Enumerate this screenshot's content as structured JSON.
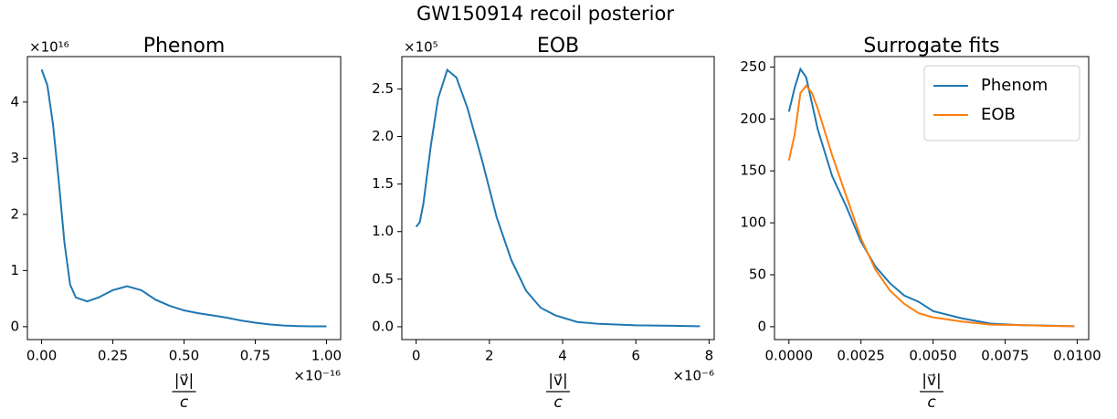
{
  "title": "GW150914 recoil posterior",
  "chart_data": [
    {
      "type": "line",
      "title": "Phenom",
      "xlabel_numerator": "|v⃗|",
      "xlabel_denominator": "c",
      "x_offset_label": "×10⁻¹⁶",
      "y_offset_label": "×10¹⁶",
      "x": [
        0,
        0.02,
        0.04,
        0.06,
        0.08,
        0.1,
        0.12,
        0.16,
        0.2,
        0.25,
        0.3,
        0.35,
        0.4,
        0.45,
        0.5,
        0.55,
        0.6,
        0.65,
        0.7,
        0.75,
        0.8,
        0.85,
        0.9,
        0.95,
        1.0
      ],
      "series": [
        {
          "color": "#1f77b4",
          "values": [
            4.58,
            4.3,
            3.6,
            2.6,
            1.5,
            0.75,
            0.52,
            0.45,
            0.52,
            0.65,
            0.72,
            0.65,
            0.48,
            0.37,
            0.29,
            0.24,
            0.2,
            0.16,
            0.11,
            0.07,
            0.04,
            0.02,
            0.01,
            0.005,
            0.005
          ]
        }
      ],
      "xlim": [
        -0.05,
        1.05
      ],
      "ylim": [
        -0.23,
        4.81
      ],
      "xticks": [
        {
          "value": 0,
          "label": "0.00"
        },
        {
          "value": 0.25,
          "label": "0.25"
        },
        {
          "value": 0.5,
          "label": "0.50"
        },
        {
          "value": 0.75,
          "label": "0.75"
        },
        {
          "value": 1,
          "label": "1.00"
        }
      ],
      "yticks": [
        0,
        1,
        2,
        3,
        4
      ]
    },
    {
      "type": "line",
      "title": "EOB",
      "xlabel_numerator": "|v⃗|",
      "xlabel_denominator": "c",
      "x_offset_label": "×10⁻⁶",
      "y_offset_label": "×10⁵",
      "x": [
        0,
        0.1,
        0.2,
        0.4,
        0.6,
        0.85,
        1.1,
        1.4,
        1.8,
        2.2,
        2.6,
        3.0,
        3.4,
        3.8,
        4.4,
        5,
        6,
        7,
        7.75
      ],
      "series": [
        {
          "color": "#1f77b4",
          "values": [
            1.05,
            1.1,
            1.3,
            1.9,
            2.4,
            2.7,
            2.62,
            2.3,
            1.75,
            1.15,
            0.7,
            0.38,
            0.2,
            0.12,
            0.05,
            0.03,
            0.015,
            0.01,
            0.005
          ]
        }
      ],
      "xlim": [
        -0.39,
        8.14
      ],
      "ylim": [
        -0.135,
        2.84
      ],
      "xticks": [
        0,
        2,
        4,
        6,
        8
      ],
      "yticks": [
        {
          "value": 0,
          "label": "0.0"
        },
        {
          "value": 0.5,
          "label": "0.5"
        },
        {
          "value": 1,
          "label": "1.0"
        },
        {
          "value": 1.5,
          "label": "1.5"
        },
        {
          "value": 2,
          "label": "2.0"
        },
        {
          "value": 2.5,
          "label": "2.5"
        }
      ]
    },
    {
      "type": "line",
      "title": "Surrogate fits",
      "xlabel_numerator": "|v⃗|",
      "xlabel_denominator": "c",
      "legend": "upper right",
      "x": [
        0,
        0.0002,
        0.0004,
        0.0006,
        0.0008,
        0.001,
        0.0015,
        0.002,
        0.0025,
        0.003,
        0.0035,
        0.004,
        0.0045,
        0.005,
        0.006,
        0.007,
        0.008,
        0.009,
        0.0099
      ],
      "series": [
        {
          "name": "Phenom",
          "color": "#1f77b4",
          "values": [
            207,
            230,
            248,
            240,
            215,
            190,
            145,
            115,
            82,
            58,
            42,
            30,
            24,
            15,
            8,
            3,
            1.5,
            1,
            0.5
          ]
        },
        {
          "name": "EOB",
          "color": "#ff7f0e",
          "values": [
            160,
            185,
            225,
            232,
            225,
            210,
            165,
            125,
            85,
            55,
            35,
            22,
            13,
            9,
            5,
            2,
            1.5,
            0.8,
            0.5
          ]
        }
      ],
      "xlim": [
        -0.0005,
        0.0104
      ],
      "ylim": [
        -12.4,
        260
      ],
      "xticks": [
        {
          "value": 0,
          "label": "0.0000"
        },
        {
          "value": 0.0025,
          "label": "0.0025"
        },
        {
          "value": 0.005,
          "label": "0.0050"
        },
        {
          "value": 0.0075,
          "label": "0.0075"
        },
        {
          "value": 0.01,
          "label": "0.0100"
        }
      ],
      "yticks": [
        0,
        50,
        100,
        150,
        200,
        250
      ]
    }
  ]
}
